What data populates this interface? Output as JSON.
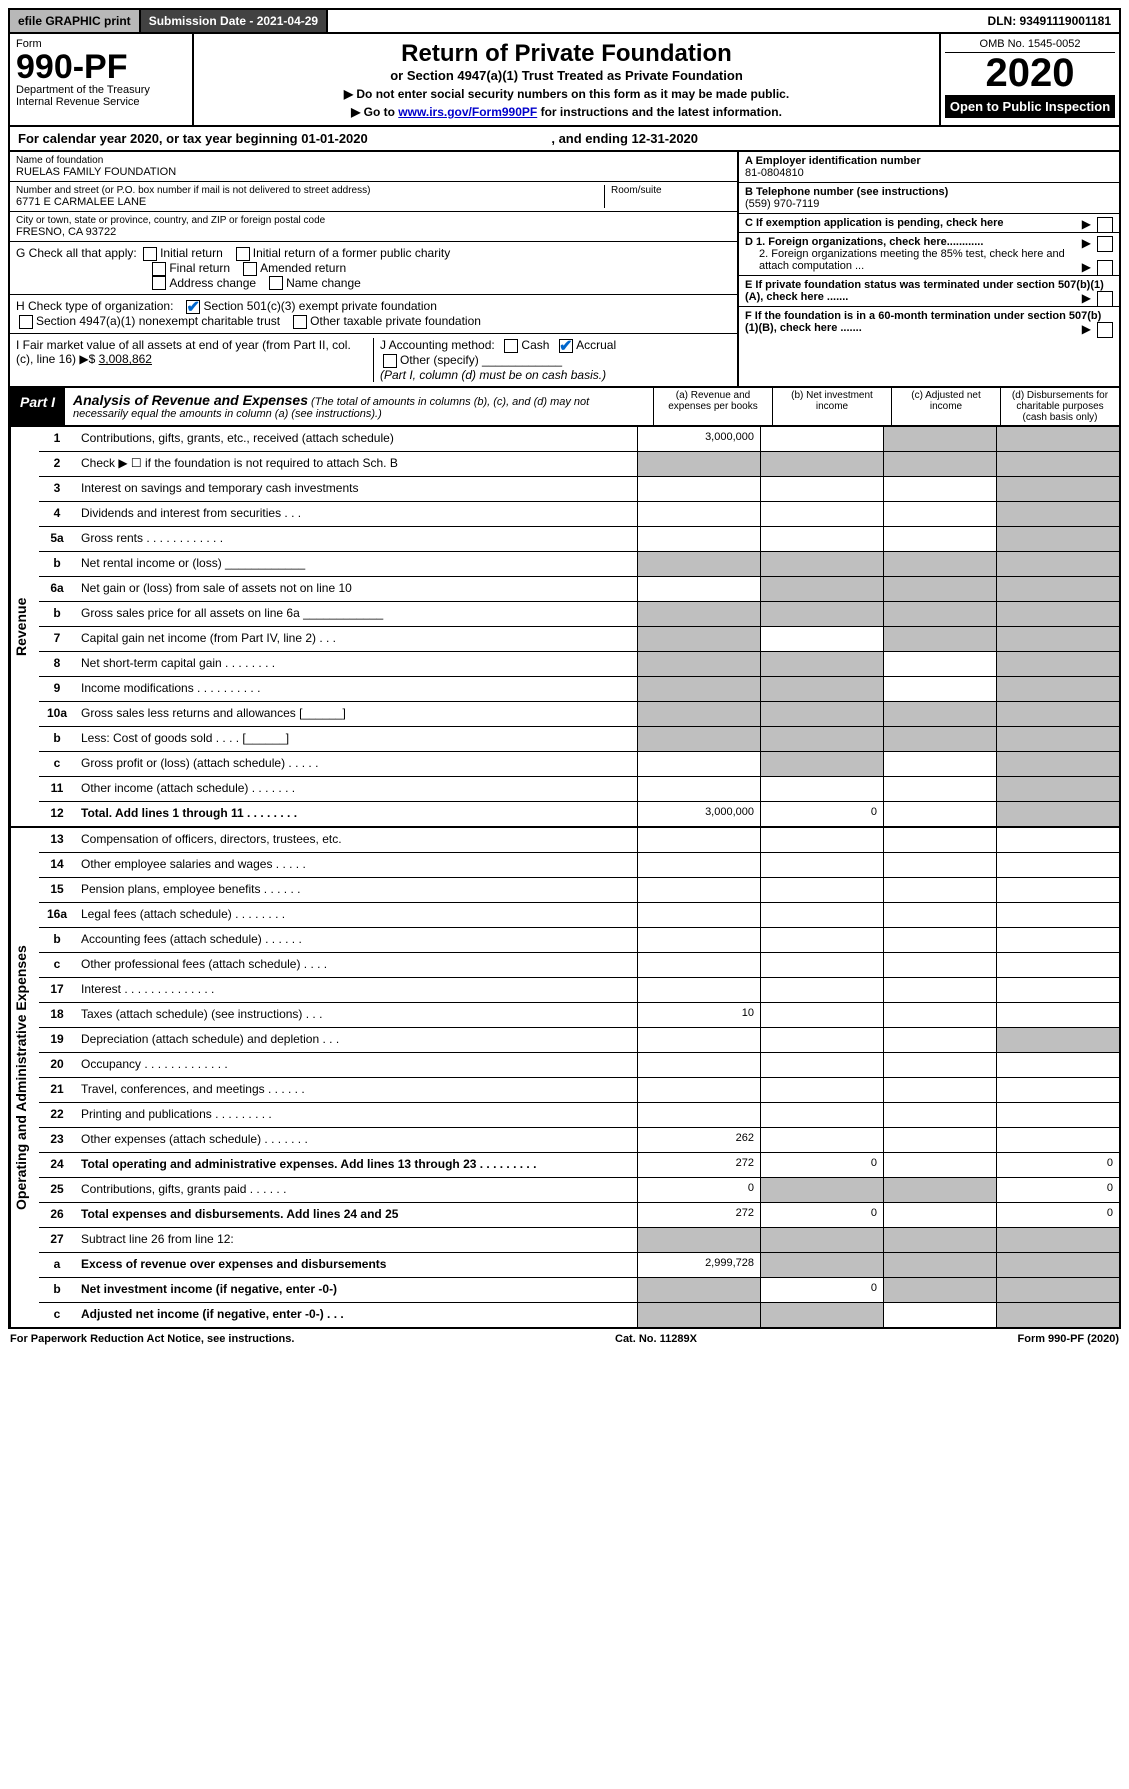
{
  "topbar": {
    "efile": "efile GRAPHIC print",
    "subdate": "Submission Date - 2021-04-29",
    "dln": "DLN: 93491119001181"
  },
  "header": {
    "form_word": "Form",
    "form_num": "990-PF",
    "dept": "Department of the Treasury",
    "irs": "Internal Revenue Service",
    "title": "Return of Private Foundation",
    "subtitle": "or Section 4947(a)(1) Trust Treated as Private Foundation",
    "note1": "▶ Do not enter social security numbers on this form as it may be made public.",
    "note2_pre": "▶ Go to ",
    "note2_link": "www.irs.gov/Form990PF",
    "note2_post": " for instructions and the latest information.",
    "omb": "OMB No. 1545-0052",
    "year": "2020",
    "inspect": "Open to Public Inspection"
  },
  "calyear": {
    "text_pre": "For calendar year 2020, or tax year beginning ",
    "begin": "01-01-2020",
    "mid": " , and ending ",
    "end": "12-31-2020"
  },
  "info": {
    "name_label": "Name of foundation",
    "name": "RUELAS FAMILY FOUNDATION",
    "addr_label": "Number and street (or P.O. box number if mail is not delivered to street address)",
    "addr": "6771 E CARMALEE LANE",
    "room_label": "Room/suite",
    "city_label": "City or town, state or province, country, and ZIP or foreign postal code",
    "city": "FRESNO, CA  93722",
    "ein_label": "A Employer identification number",
    "ein": "81-0804810",
    "tel_label": "B Telephone number (see instructions)",
    "tel": "(559) 970-7119",
    "c_label": "C If exemption application is pending, check here",
    "d1": "D 1. Foreign organizations, check here............",
    "d2": "2. Foreign organizations meeting the 85% test, check here and attach computation ...",
    "e_label": "E  If private foundation status was terminated under section 507(b)(1)(A), check here .......",
    "f_label": "F  If the foundation is in a 60-month termination under section 507(b)(1)(B), check here .......",
    "g_label": "G Check all that apply:",
    "g_opts": [
      "Initial return",
      "Initial return of a former public charity",
      "Final return",
      "Amended return",
      "Address change",
      "Name change"
    ],
    "h_label": "H Check type of organization:",
    "h1": "Section 501(c)(3) exempt private foundation",
    "h2": "Section 4947(a)(1) nonexempt charitable trust",
    "h3": "Other taxable private foundation",
    "i_label": "I Fair market value of all assets at end of year (from Part II, col. (c), line 16) ▶$ ",
    "i_val": "3,008,862",
    "j_label": "J Accounting method:",
    "j_cash": "Cash",
    "j_accrual": "Accrual",
    "j_other": "Other (specify)",
    "j_note": "(Part I, column (d) must be on cash basis.)"
  },
  "part1": {
    "tag": "Part I",
    "title": "Analysis of Revenue and Expenses",
    "note": " (The total of amounts in columns (b), (c), and (d) may not necessarily equal the amounts in column (a) (see instructions).)",
    "col_a": "(a)  Revenue and expenses per books",
    "col_b": "(b)  Net investment income",
    "col_c": "(c)  Adjusted net income",
    "col_d": "(d)  Disbursements for charitable purposes (cash basis only)"
  },
  "side": {
    "rev": "Revenue",
    "exp": "Operating and Administrative Expenses"
  },
  "rows_rev": [
    {
      "n": "1",
      "d": "Contributions, gifts, grants, etc., received (attach schedule)",
      "a": "3,000,000",
      "shd_b": false,
      "shd_c": true,
      "shd_d": true
    },
    {
      "n": "2",
      "d": "Check ▶ ☐ if the foundation is not required to attach Sch. B",
      "a": "",
      "shd_a": true,
      "shd_b": true,
      "shd_c": true,
      "shd_d": true
    },
    {
      "n": "3",
      "d": "Interest on savings and temporary cash investments",
      "a": "",
      "shd_d": true
    },
    {
      "n": "4",
      "d": "Dividends and interest from securities   .   .   .",
      "a": "",
      "shd_d": true
    },
    {
      "n": "5a",
      "d": "Gross rents   .   .   .   .   .   .   .   .   .   .   .   .",
      "a": "",
      "shd_d": true
    },
    {
      "n": "b",
      "d": "Net rental income or (loss)  ____________",
      "shd_a": true,
      "shd_b": true,
      "shd_c": true,
      "shd_d": true
    },
    {
      "n": "6a",
      "d": "Net gain or (loss) from sale of assets not on line 10",
      "a": "",
      "shd_b": true,
      "shd_c": true,
      "shd_d": true
    },
    {
      "n": "b",
      "d": "Gross sales price for all assets on line 6a  ____________",
      "shd_a": true,
      "shd_b": true,
      "shd_c": true,
      "shd_d": true
    },
    {
      "n": "7",
      "d": "Capital gain net income (from Part IV, line 2)   .   .   .",
      "shd_a": true,
      "shd_c": true,
      "shd_d": true
    },
    {
      "n": "8",
      "d": "Net short-term capital gain   .   .   .   .   .   .   .   .",
      "shd_a": true,
      "shd_b": true,
      "shd_d": true
    },
    {
      "n": "9",
      "d": "Income modifications   .   .   .   .   .   .   .   .   .   .",
      "shd_a": true,
      "shd_b": true,
      "shd_d": true
    },
    {
      "n": "10a",
      "d": "Gross sales less returns and allowances  [______]",
      "shd_a": true,
      "shd_b": true,
      "shd_c": true,
      "shd_d": true
    },
    {
      "n": "b",
      "d": "Less: Cost of goods sold   .   .   .   .   [______]",
      "shd_a": true,
      "shd_b": true,
      "shd_c": true,
      "shd_d": true
    },
    {
      "n": "c",
      "d": "Gross profit or (loss) (attach schedule)   .   .   .   .   .",
      "shd_b": true,
      "shd_d": true
    },
    {
      "n": "11",
      "d": "Other income (attach schedule)   .   .   .   .   .   .   .",
      "shd_d": true
    },
    {
      "n": "12",
      "d": "Total. Add lines 1 through 11   .   .   .   .   .   .   .   .",
      "bold": true,
      "a": "3,000,000",
      "b": "0",
      "shd_d": true
    }
  ],
  "rows_exp": [
    {
      "n": "13",
      "d": "Compensation of officers, directors, trustees, etc."
    },
    {
      "n": "14",
      "d": "Other employee salaries and wages   .   .   .   .   ."
    },
    {
      "n": "15",
      "d": "Pension plans, employee benefits   .   .   .   .   .   ."
    },
    {
      "n": "16a",
      "d": "Legal fees (attach schedule)   .   .   .   .   .   .   .   ."
    },
    {
      "n": "b",
      "d": "Accounting fees (attach schedule)   .   .   .   .   .   ."
    },
    {
      "n": "c",
      "d": "Other professional fees (attach schedule)   .   .   .   ."
    },
    {
      "n": "17",
      "d": "Interest   .   .   .   .   .   .   .   .   .   .   .   .   .   ."
    },
    {
      "n": "18",
      "d": "Taxes (attach schedule) (see instructions)   .   .   .",
      "a": "10"
    },
    {
      "n": "19",
      "d": "Depreciation (attach schedule) and depletion   .   .   .",
      "shd_d": true
    },
    {
      "n": "20",
      "d": "Occupancy   .   .   .   .   .   .   .   .   .   .   .   .   ."
    },
    {
      "n": "21",
      "d": "Travel, conferences, and meetings   .   .   .   .   .   ."
    },
    {
      "n": "22",
      "d": "Printing and publications   .   .   .   .   .   .   .   .   ."
    },
    {
      "n": "23",
      "d": "Other expenses (attach schedule)   .   .   .   .   .   .   .",
      "a": "262"
    },
    {
      "n": "24",
      "d": "Total operating and administrative expenses. Add lines 13 through 23   .   .   .   .   .   .   .   .   .",
      "bold": true,
      "a": "272",
      "b": "0",
      "d2": "0"
    },
    {
      "n": "25",
      "d": "Contributions, gifts, grants paid   .   .   .   .   .   .",
      "a": "0",
      "shd_b": true,
      "shd_c": true,
      "d2": "0"
    },
    {
      "n": "26",
      "d": "Total expenses and disbursements. Add lines 24 and 25",
      "bold": true,
      "a": "272",
      "b": "0",
      "d2": "0"
    },
    {
      "n": "27",
      "d": "Subtract line 26 from line 12:",
      "shd_a": true,
      "shd_b": true,
      "shd_c": true,
      "shd_d": true
    },
    {
      "n": "a",
      "d": "Excess of revenue over expenses and disbursements",
      "bold": true,
      "a": "2,999,728",
      "shd_b": true,
      "shd_c": true,
      "shd_d": true
    },
    {
      "n": "b",
      "d": "Net investment income (if negative, enter -0-)",
      "bold": true,
      "shd_a": true,
      "b": "0",
      "shd_c": true,
      "shd_d": true
    },
    {
      "n": "c",
      "d": "Adjusted net income (if negative, enter -0-)   .   .   .",
      "bold": true,
      "shd_a": true,
      "shd_b": true,
      "shd_d": true
    }
  ],
  "footer": {
    "left": "For Paperwork Reduction Act Notice, see instructions.",
    "mid": "Cat. No. 11289X",
    "right": "Form 990-PF (2020)"
  }
}
